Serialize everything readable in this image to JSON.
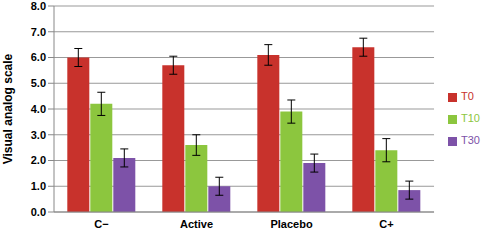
{
  "chart_data": {
    "type": "bar",
    "y_label": "Visual analog scale",
    "categories": [
      "C−",
      "Active",
      "Placebo",
      "C+"
    ],
    "series": [
      {
        "name": "T0",
        "color": "#c8322c",
        "values": [
          6.0,
          5.7,
          6.1,
          6.4
        ],
        "errors": [
          0.35,
          0.35,
          0.4,
          0.35
        ]
      },
      {
        "name": "T10",
        "color": "#8cc63e",
        "values": [
          4.2,
          2.6,
          3.9,
          2.4
        ],
        "errors": [
          0.45,
          0.4,
          0.45,
          0.45
        ]
      },
      {
        "name": "T30",
        "color": "#7d52a8",
        "values": [
          2.1,
          1.0,
          1.9,
          0.85
        ],
        "errors": [
          0.35,
          0.35,
          0.35,
          0.35
        ]
      }
    ],
    "ylim": [
      0,
      8
    ],
    "yticks": [
      {
        "value": 0,
        "label": "0.0"
      },
      {
        "value": 1,
        "label": "1.0"
      },
      {
        "value": 2,
        "label": "2.0"
      },
      {
        "value": 3,
        "label": "3.0"
      },
      {
        "value": 4,
        "label": "4.0"
      },
      {
        "value": 5,
        "label": "5.0"
      },
      {
        "value": 6,
        "label": "6.0"
      },
      {
        "value": 7,
        "label": "7.0"
      },
      {
        "value": 8,
        "label": "8.0"
      }
    ],
    "grid": true,
    "legend": "right"
  }
}
